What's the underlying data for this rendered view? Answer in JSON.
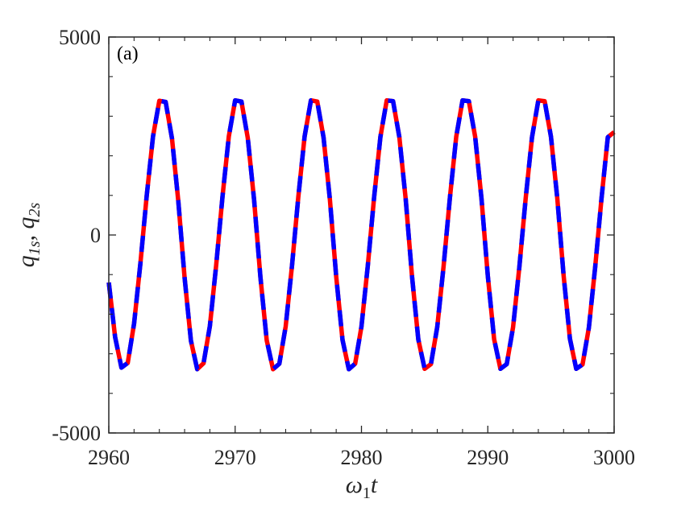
{
  "chart_data": {
    "type": "line",
    "panel_label": "(a)",
    "xlabel": "ω1t",
    "ylabel": "q1s, q2s",
    "xlim": [
      2960,
      3000
    ],
    "ylim": [
      -5000,
      5000
    ],
    "x_ticks": [
      2960,
      2970,
      2980,
      2990,
      3000
    ],
    "x_tick_labels": [
      "2960",
      "2970",
      "2980",
      "2990",
      "3000"
    ],
    "y_ticks": [
      -5000,
      0,
      5000
    ],
    "y_tick_labels": [
      "-5000",
      "0",
      "5000"
    ],
    "grid": false,
    "series": [
      {
        "style": "solid",
        "color": "#ff0000",
        "x": [
          2960.0,
          2960.5,
          2961.0,
          2961.5,
          2962.0,
          2962.5,
          2963.0,
          2963.5,
          2964.0,
          2964.5,
          2965.0,
          2965.5,
          2966.0,
          2966.5,
          2967.0,
          2967.5,
          2968.0,
          2968.5,
          2969.0,
          2969.5,
          2970.0,
          2970.5,
          2971.0,
          2971.5,
          2972.0,
          2972.5,
          2973.0,
          2973.5,
          2974.0,
          2974.5,
          2975.0,
          2975.5,
          2976.0,
          2976.5,
          2977.0,
          2977.5,
          2978.0,
          2978.5,
          2979.0,
          2979.5,
          2980.0,
          2980.5,
          2981.0,
          2981.5,
          2982.0,
          2982.5,
          2983.0,
          2983.5,
          2984.0,
          2984.5,
          2985.0,
          2985.5,
          2986.0,
          2986.5,
          2987.0,
          2987.5,
          2988.0,
          2988.5,
          2989.0,
          2989.5,
          2990.0,
          2990.5,
          2991.0,
          2991.5,
          2992.0,
          2992.5,
          2993.0,
          2993.5,
          2994.0,
          2994.5,
          2995.0,
          2995.5,
          2996.0,
          2996.5,
          2997.0,
          2997.5,
          2998.0,
          2998.5,
          2999.0,
          2999.5,
          3000.0
        ],
        "y": [
          -1200,
          -2580,
          -3350,
          -3230,
          -2240,
          -720,
          990,
          2490,
          3390,
          3360,
          2440,
          860,
          -1080,
          -2670,
          -3390,
          -3240,
          -2300,
          -760,
          970,
          2490,
          3400,
          3370,
          2450,
          890,
          -1060,
          -2660,
          -3390,
          -3250,
          -2310,
          -780,
          960,
          2490,
          3400,
          3370,
          2460,
          900,
          -1050,
          -2650,
          -3390,
          -3250,
          -2310,
          -780,
          950,
          2480,
          3400,
          3380,
          2470,
          910,
          -1040,
          -2640,
          -3380,
          -3260,
          -2320,
          -790,
          940,
          2480,
          3400,
          3380,
          2480,
          920,
          -1030,
          -2630,
          -3380,
          -3260,
          -2330,
          -800,
          930,
          2470,
          3400,
          3380,
          2480,
          930,
          -1020,
          -2620,
          -3380,
          -3270,
          -2340,
          -810,
          920,
          2470,
          2600
        ]
      },
      {
        "style": "dashed",
        "color": "#0000ff",
        "x": [
          2960.0,
          2960.5,
          2961.0,
          2961.5,
          2962.0,
          2962.5,
          2963.0,
          2963.5,
          2964.0,
          2964.5,
          2965.0,
          2965.5,
          2966.0,
          2966.5,
          2967.0,
          2967.5,
          2968.0,
          2968.5,
          2969.0,
          2969.5,
          2970.0,
          2970.5,
          2971.0,
          2971.5,
          2972.0,
          2972.5,
          2973.0,
          2973.5,
          2974.0,
          2974.5,
          2975.0,
          2975.5,
          2976.0,
          2976.5,
          2977.0,
          2977.5,
          2978.0,
          2978.5,
          2979.0,
          2979.5,
          2980.0,
          2980.5,
          2981.0,
          2981.5,
          2982.0,
          2982.5,
          2983.0,
          2983.5,
          2984.0,
          2984.5,
          2985.0,
          2985.5,
          2986.0,
          2986.5,
          2987.0,
          2987.5,
          2988.0,
          2988.5,
          2989.0,
          2989.5,
          2990.0,
          2990.5,
          2991.0,
          2991.5,
          2992.0,
          2992.5,
          2993.0,
          2993.5,
          2994.0,
          2994.5,
          2995.0,
          2995.5,
          2996.0,
          2996.5,
          2997.0,
          2997.5,
          2998.0,
          2998.5,
          2999.0,
          2999.5,
          3000.0
        ],
        "y": [
          -1200,
          -2580,
          -3350,
          -3230,
          -2240,
          -720,
          990,
          2490,
          3390,
          3360,
          2440,
          860,
          -1080,
          -2670,
          -3390,
          -3240,
          -2300,
          -760,
          970,
          2490,
          3400,
          3370,
          2450,
          890,
          -1060,
          -2660,
          -3390,
          -3250,
          -2310,
          -780,
          960,
          2490,
          3400,
          3370,
          2460,
          900,
          -1050,
          -2650,
          -3390,
          -3250,
          -2310,
          -780,
          950,
          2480,
          3400,
          3380,
          2470,
          910,
          -1040,
          -2640,
          -3380,
          -3260,
          -2320,
          -790,
          940,
          2480,
          3400,
          3380,
          2480,
          920,
          -1030,
          -2630,
          -3380,
          -3260,
          -2330,
          -800,
          930,
          2470,
          3400,
          3380,
          2480,
          930,
          -1020,
          -2620,
          -3380,
          -3270,
          -2340,
          -810,
          920,
          2470,
          2600
        ]
      }
    ]
  }
}
